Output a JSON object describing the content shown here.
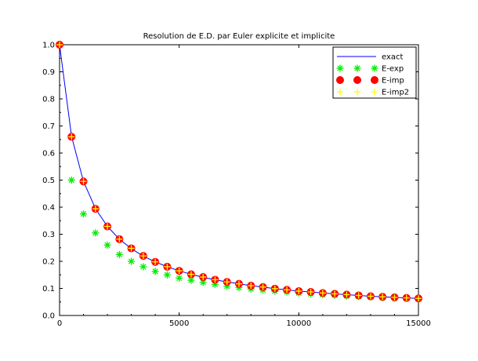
{
  "chart_data": {
    "type": "line",
    "title": "Resolution de E.D. par Euler explicite et implicite",
    "xlabel": "",
    "ylabel": "",
    "xlim": [
      0,
      15000
    ],
    "ylim": [
      0,
      1
    ],
    "grid": false,
    "legend_position": "top-right",
    "x_ticks": [
      {
        "value": 0,
        "label": "0"
      },
      {
        "value": 5000,
        "label": "5000"
      },
      {
        "value": 10000,
        "label": "10000"
      },
      {
        "value": 15000,
        "label": "15000"
      }
    ],
    "y_ticks": [
      {
        "value": 0.0,
        "label": "0.0"
      },
      {
        "value": 0.1,
        "label": "0.1"
      },
      {
        "value": 0.2,
        "label": "0.2"
      },
      {
        "value": 0.3,
        "label": "0.3"
      },
      {
        "value": 0.4,
        "label": "0.4"
      },
      {
        "value": 0.5,
        "label": "0.5"
      },
      {
        "value": 0.6,
        "label": "0.6"
      },
      {
        "value": 0.7,
        "label": "0.7"
      },
      {
        "value": 0.8,
        "label": "0.8"
      },
      {
        "value": 0.9,
        "label": "0.9"
      },
      {
        "value": 1.0,
        "label": "1.0"
      }
    ],
    "x": [
      0,
      500,
      1000,
      1500,
      2000,
      2500,
      3000,
      3500,
      4000,
      4500,
      5000,
      5500,
      6000,
      6500,
      7000,
      7500,
      8000,
      8500,
      9000,
      9500,
      10000,
      10500,
      11000,
      11500,
      12000,
      12500,
      13000,
      13500,
      14000,
      14500,
      15000
    ],
    "series": [
      {
        "name": "exact",
        "style": "line",
        "color": "#0000ff",
        "values": [
          1.0,
          0.662,
          0.495,
          0.395,
          0.329,
          0.282,
          0.247,
          0.219,
          0.198,
          0.18,
          0.165,
          0.152,
          0.141,
          0.132,
          0.124,
          0.117,
          0.11,
          0.105,
          0.099,
          0.095,
          0.09,
          0.087,
          0.083,
          0.08,
          0.077,
          0.074,
          0.071,
          0.069,
          0.067,
          0.065,
          0.063
        ]
      },
      {
        "name": "E-exp",
        "style": "asterisk",
        "color": "#00ee00",
        "values": [
          null,
          0.5,
          0.375,
          0.305,
          0.26,
          0.225,
          0.2,
          0.18,
          0.163,
          0.15,
          0.138,
          0.13,
          0.122,
          0.115,
          0.108,
          0.103,
          0.098,
          0.094,
          0.09,
          0.087,
          0.083,
          0.08,
          0.077,
          0.075,
          0.072,
          0.07,
          0.068,
          0.066,
          0.064,
          0.063,
          0.061
        ]
      },
      {
        "name": "E-imp",
        "style": "filled-circle",
        "color": "#ff0000",
        "values": [
          1.0,
          0.66,
          0.495,
          0.394,
          0.329,
          0.282,
          0.248,
          0.22,
          0.198,
          0.18,
          0.165,
          0.152,
          0.142,
          0.132,
          0.124,
          0.117,
          0.11,
          0.105,
          0.099,
          0.095,
          0.09,
          0.087,
          0.083,
          0.08,
          0.077,
          0.074,
          0.071,
          0.069,
          0.067,
          0.065,
          0.063
        ]
      },
      {
        "name": "E-imp2",
        "style": "plus",
        "color": "#ffff00",
        "values": [
          1.0,
          0.66,
          0.495,
          0.394,
          0.329,
          0.282,
          0.248,
          0.22,
          0.198,
          0.18,
          0.165,
          0.152,
          0.142,
          0.132,
          0.124,
          0.117,
          0.11,
          0.105,
          0.099,
          0.095,
          0.09,
          0.087,
          0.083,
          0.08,
          0.077,
          0.074,
          0.071,
          0.069,
          0.067,
          0.065,
          0.063
        ]
      }
    ]
  }
}
